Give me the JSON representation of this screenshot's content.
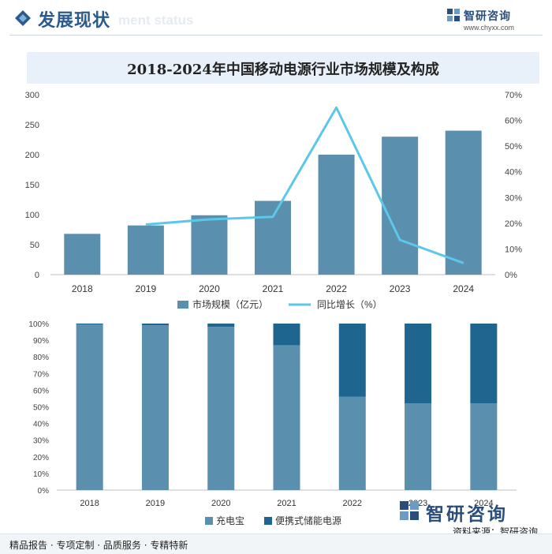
{
  "header": {
    "title": "发展现状",
    "ghost_text": "ment status",
    "brand_name": "智研咨询",
    "brand_url": "www.chyxx.com"
  },
  "chart_title": "2018-2024年中国移动电源行业市场规模及构成",
  "colors": {
    "bar": "#5b8fae",
    "line": "#5bc8ea",
    "dark": "#1e6690",
    "header_accent": "#2a5b8c"
  },
  "chart_data": [
    {
      "type": "bar",
      "categories": [
        "2018",
        "2019",
        "2020",
        "2021",
        "2022",
        "2023",
        "2024"
      ],
      "series": [
        {
          "name": "市场规模（亿元）",
          "axis": "left",
          "values": [
            68,
            82,
            99,
            123,
            200,
            230,
            240
          ]
        },
        {
          "name": "同比增长（%）",
          "type": "line",
          "axis": "right",
          "values": [
            null,
            19.5,
            21.5,
            22.5,
            65,
            13.5,
            4.5
          ]
        }
      ],
      "ylim_left": [
        0,
        300
      ],
      "yticks_left": [
        "0",
        "50",
        "100",
        "150",
        "200",
        "250",
        "300"
      ],
      "ylim_right": [
        0,
        70
      ],
      "yticks_right": [
        "0%",
        "10%",
        "20%",
        "30%",
        "40%",
        "50%",
        "60%",
        "70%"
      ],
      "legend": "bottom",
      "grid": false
    },
    {
      "type": "bar",
      "stacked": true,
      "categories": [
        "2018",
        "2019",
        "2020",
        "2021",
        "2022",
        "2023",
        "2024"
      ],
      "series": [
        {
          "name": "充电宝",
          "values": [
            99.5,
            99,
            98,
            87,
            56,
            52,
            52
          ]
        },
        {
          "name": "便携式储能电源",
          "values": [
            0.5,
            1,
            2,
            13,
            44,
            48,
            48
          ]
        }
      ],
      "ylim": [
        0,
        100
      ],
      "yticks": [
        "0%",
        "10%",
        "20%",
        "30%",
        "40%",
        "50%",
        "60%",
        "70%",
        "80%",
        "90%",
        "100%"
      ],
      "legend": "bottom",
      "grid": false
    }
  ],
  "source": "资料来源：智研咨询",
  "brand_big": "智研咨询",
  "footer": "精品报告 · 专项定制 · 品质服务 · 专精特新"
}
